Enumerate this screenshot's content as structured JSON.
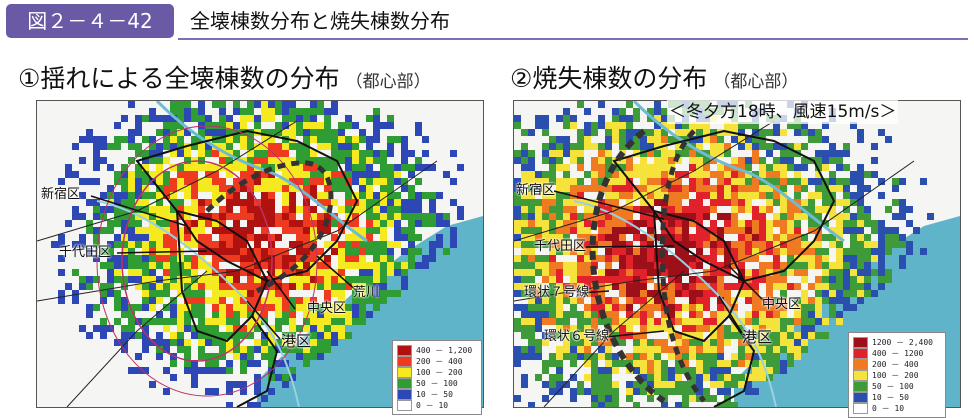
{
  "header": {
    "figure_number": "図２－４－42",
    "title": "全壊棟数分布と焼失棟数分布"
  },
  "panels": [
    {
      "title": "①揺れによる全壊棟数の分布",
      "subtitle": "（都心部）",
      "labels": {
        "shinjuku": "新宿区",
        "chiyoda": "千代田区",
        "chuo": "中央区",
        "arakawa": "荒川",
        "minato": "港区"
      },
      "legend": [
        {
          "range": "400 － 1,200",
          "color": "#b0120f"
        },
        {
          "range": "200 － 400",
          "color": "#ef3a22"
        },
        {
          "range": "100 － 200",
          "color": "#f5ea1f"
        },
        {
          "range": "50 － 100",
          "color": "#2f9d33"
        },
        {
          "range": "10 － 50",
          "color": "#2d47b4"
        },
        {
          "range": "0 － 10",
          "color": "#ffffff"
        }
      ]
    },
    {
      "title": "②焼失棟数の分布",
      "subtitle": "（都心部）",
      "note": "＜冬夕方18時、風速15m/s＞",
      "labels": {
        "shinjuku": "新宿区",
        "chiyoda": "千代田区",
        "ring7": "環状７号線",
        "ring6": "環状６号線",
        "chuo": "中央区",
        "minato": "港区"
      },
      "legend": [
        {
          "range": "1200 － 2,400",
          "color": "#9d0f19"
        },
        {
          "range": "400 － 1200",
          "color": "#e1222b"
        },
        {
          "range": "200 － 400",
          "color": "#f07a22"
        },
        {
          "range": "100 － 200",
          "color": "#f5e23a"
        },
        {
          "range": "50 － 100",
          "color": "#3f9a3a"
        },
        {
          "range": "10 － 50",
          "color": "#2b4fae"
        },
        {
          "range": "0 － 10",
          "color": "#ffffff"
        }
      ]
    }
  ]
}
